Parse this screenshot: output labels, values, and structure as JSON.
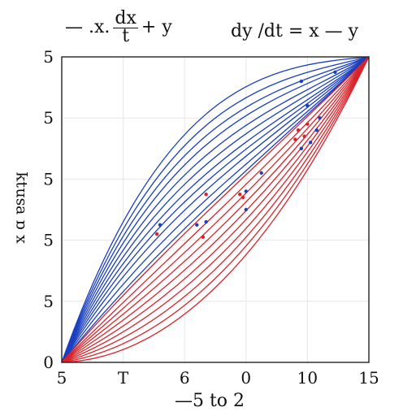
{
  "equations": {
    "left": {
      "prefix": "— .x.",
      "num": "dx",
      "den": "t",
      "suffix": "+ y"
    },
    "right": "dy /dt = x — y"
  },
  "colors": {
    "blue": "#1a3fbf",
    "red": "#d8232a",
    "grid": "#e6e6e6",
    "axis": "#222222"
  },
  "chart_data": {
    "type": "line",
    "title": "",
    "xlabel": "—5 to 2",
    "ylabel": "x ɑ ɐsnʇʞ",
    "x_tick_labels": [
      "5",
      "T",
      "6",
      "0",
      "10",
      "15"
    ],
    "y_tick_labels": [
      "0",
      "5",
      "5",
      "5",
      "5",
      "5"
    ],
    "xlim": [
      0,
      1
    ],
    "ylim": [
      0,
      1
    ],
    "grid": true,
    "origin": [
      0,
      0
    ],
    "endpoint": [
      1,
      1
    ],
    "series": [
      {
        "color": "blue",
        "shape": [
          0.6,
          0.3
        ]
      },
      {
        "color": "blue",
        "shape": [
          0.55,
          0.25
        ]
      },
      {
        "color": "blue",
        "shape": [
          0.5,
          0.21
        ]
      },
      {
        "color": "blue",
        "shape": [
          0.45,
          0.18
        ]
      },
      {
        "color": "blue",
        "shape": [
          0.4,
          0.14
        ]
      },
      {
        "color": "blue",
        "shape": [
          0.35,
          0.11
        ]
      },
      {
        "color": "blue",
        "shape": [
          0.3,
          0.08
        ]
      },
      {
        "color": "blue",
        "shape": [
          0.25,
          0.06
        ]
      },
      {
        "color": "blue",
        "shape": [
          0.2,
          0.04
        ]
      },
      {
        "color": "blue",
        "shape": [
          0.14,
          0.02
        ]
      },
      {
        "color": "blue",
        "shape": [
          0.08,
          0.01
        ]
      },
      {
        "color": "red",
        "shape": [
          0.05,
          0.0
        ]
      },
      {
        "color": "red",
        "shape": [
          0.0,
          -0.04
        ]
      },
      {
        "color": "red",
        "shape": [
          -0.04,
          -0.08
        ]
      },
      {
        "color": "red",
        "shape": [
          -0.08,
          -0.12
        ]
      },
      {
        "color": "red",
        "shape": [
          -0.12,
          -0.16
        ]
      },
      {
        "color": "red",
        "shape": [
          -0.16,
          -0.2
        ]
      },
      {
        "color": "red",
        "shape": [
          -0.2,
          -0.24
        ]
      },
      {
        "color": "red",
        "shape": [
          -0.24,
          -0.28
        ]
      },
      {
        "color": "red",
        "shape": [
          -0.28,
          -0.32
        ]
      },
      {
        "color": "red",
        "shape": [
          -0.32,
          -0.36
        ]
      }
    ],
    "points": [
      {
        "x": 0.78,
        "y": 0.92,
        "color": "blue"
      },
      {
        "x": 0.89,
        "y": 0.95,
        "color": "blue"
      },
      {
        "x": 0.8,
        "y": 0.84,
        "color": "blue"
      },
      {
        "x": 0.84,
        "y": 0.8,
        "color": "blue"
      },
      {
        "x": 0.83,
        "y": 0.76,
        "color": "blue"
      },
      {
        "x": 0.8,
        "y": 0.78,
        "color": "red"
      },
      {
        "x": 0.77,
        "y": 0.76,
        "color": "red"
      },
      {
        "x": 0.76,
        "y": 0.73,
        "color": "red"
      },
      {
        "x": 0.79,
        "y": 0.74,
        "color": "red"
      },
      {
        "x": 0.78,
        "y": 0.7,
        "color": "blue"
      },
      {
        "x": 0.81,
        "y": 0.72,
        "color": "blue"
      },
      {
        "x": 0.65,
        "y": 0.62,
        "color": "blue"
      },
      {
        "x": 0.6,
        "y": 0.56,
        "color": "blue"
      },
      {
        "x": 0.59,
        "y": 0.54,
        "color": "red"
      },
      {
        "x": 0.58,
        "y": 0.55,
        "color": "red"
      },
      {
        "x": 0.6,
        "y": 0.5,
        "color": "blue"
      },
      {
        "x": 0.47,
        "y": 0.46,
        "color": "blue"
      },
      {
        "x": 0.44,
        "y": 0.45,
        "color": "blue"
      },
      {
        "x": 0.46,
        "y": 0.41,
        "color": "red"
      },
      {
        "x": 0.31,
        "y": 0.42,
        "color": "red"
      },
      {
        "x": 0.32,
        "y": 0.45,
        "color": "blue"
      },
      {
        "x": 0.47,
        "y": 0.55,
        "color": "red"
      }
    ]
  }
}
